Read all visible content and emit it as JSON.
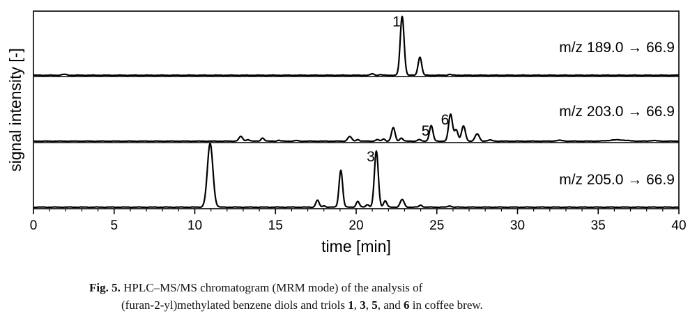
{
  "chart_data": {
    "type": "line",
    "xlabel": "time [min]",
    "ylabel": "signal intensity [-]",
    "xlim": [
      0,
      40
    ],
    "x_ticks": [
      0,
      5,
      10,
      15,
      20,
      25,
      30,
      35,
      40
    ],
    "grid": false,
    "legend": "none",
    "panels": [
      {
        "label": "m/z 189.0 → 66.9",
        "baseline": 0.4,
        "peaks": [
          {
            "t": 1.9,
            "h": 1.5,
            "w": 0.15
          },
          {
            "t": 21.0,
            "h": 2.5,
            "w": 0.1
          },
          {
            "t": 21.5,
            "h": 1.0,
            "w": 0.1
          },
          {
            "t": 22.85,
            "h": 100,
            "w": 0.12
          },
          {
            "t": 23.95,
            "h": 31,
            "w": 0.11
          },
          {
            "t": 25.8,
            "h": 1.5,
            "w": 0.1
          }
        ],
        "annotations": [
          {
            "text": "1",
            "t": 22.85
          }
        ]
      },
      {
        "label": "m/z 203.0 → 66.9",
        "baseline": 0.8,
        "peaks": [
          {
            "t": 12.85,
            "h": 9,
            "w": 0.12
          },
          {
            "t": 13.3,
            "h": 3,
            "w": 0.1
          },
          {
            "t": 14.2,
            "h": 6,
            "w": 0.1
          },
          {
            "t": 15.2,
            "h": 1.5,
            "w": 0.1
          },
          {
            "t": 16.3,
            "h": 1.2,
            "w": 0.1
          },
          {
            "t": 19.6,
            "h": 9,
            "w": 0.12
          },
          {
            "t": 20.1,
            "h": 3,
            "w": 0.1
          },
          {
            "t": 21.3,
            "h": 3,
            "w": 0.1
          },
          {
            "t": 21.7,
            "h": 4,
            "w": 0.1
          },
          {
            "t": 22.3,
            "h": 26,
            "w": 0.11
          },
          {
            "t": 22.8,
            "h": 6,
            "w": 0.1
          },
          {
            "t": 23.9,
            "h": 3,
            "w": 0.1
          },
          {
            "t": 24.65,
            "h": 30,
            "w": 0.11
          },
          {
            "t": 25.85,
            "h": 52,
            "w": 0.12
          },
          {
            "t": 26.2,
            "h": 22,
            "w": 0.11
          },
          {
            "t": 26.65,
            "h": 29,
            "w": 0.12
          },
          {
            "t": 27.5,
            "h": 14,
            "w": 0.13
          },
          {
            "t": 28.3,
            "h": 2,
            "w": 0.15
          },
          {
            "t": 32.6,
            "h": 1.5,
            "w": 0.2
          },
          {
            "t": 36.2,
            "h": 2.5,
            "w": 0.5
          },
          {
            "t": 38.4,
            "h": 1.2,
            "w": 0.2
          }
        ],
        "annotations": [
          {
            "text": "5",
            "t": 24.65
          },
          {
            "text": "6",
            "t": 25.85
          }
        ]
      },
      {
        "label": "m/z 205.0 → 66.9",
        "baseline": 0.8,
        "peaks": [
          {
            "t": 10.95,
            "h": 100,
            "w": 0.17
          },
          {
            "t": 17.6,
            "h": 11,
            "w": 0.1
          },
          {
            "t": 18.0,
            "h": 2,
            "w": 0.1
          },
          {
            "t": 19.05,
            "h": 58,
            "w": 0.11
          },
          {
            "t": 20.1,
            "h": 9,
            "w": 0.1
          },
          {
            "t": 20.7,
            "h": 4,
            "w": 0.1
          },
          {
            "t": 21.25,
            "h": 88,
            "w": 0.12
          },
          {
            "t": 21.8,
            "h": 10,
            "w": 0.1
          },
          {
            "t": 22.85,
            "h": 12,
            "w": 0.12
          },
          {
            "t": 24.0,
            "h": 3,
            "w": 0.1
          },
          {
            "t": 25.8,
            "h": 2,
            "w": 0.1
          }
        ],
        "annotations": [
          {
            "text": "3",
            "t": 21.25
          }
        ]
      }
    ]
  },
  "caption": {
    "prefix": "Fig. 5.",
    "line1": "HPLC–MS/MS chromatogram (MRM mode) of the analysis of",
    "line2_start": "(furan-2-yl)methylated benzene diols and triols ",
    "c1": "1",
    "sep1": ", ",
    "c3": "3",
    "sep2": ", ",
    "c5": "5",
    "sep3": ", and ",
    "c6": "6",
    "line2_end": " in coffee brew."
  }
}
